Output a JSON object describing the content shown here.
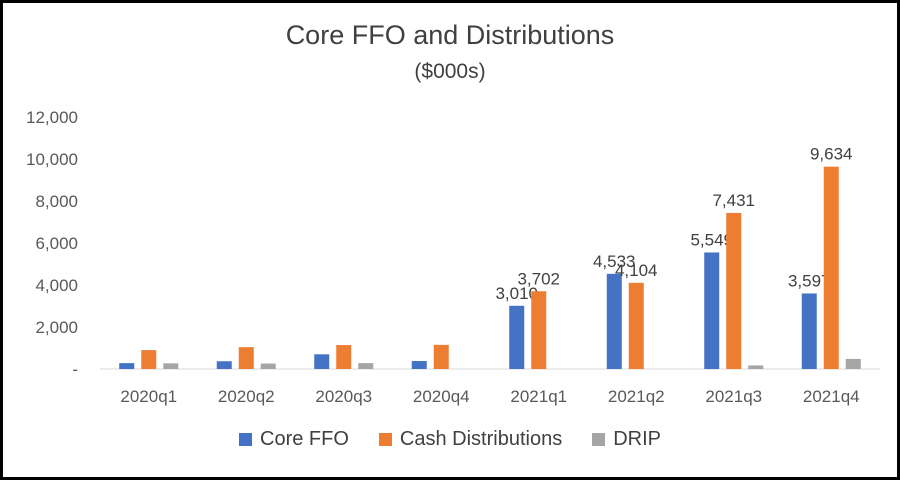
{
  "chart_data": {
    "type": "bar",
    "title": "Core FFO and Distributions",
    "subtitle": "($000s)",
    "categories": [
      "2020q1",
      "2020q2",
      "2020q3",
      "2020q4",
      "2021q1",
      "2021q2",
      "2021q3",
      "2021q4"
    ],
    "series": [
      {
        "name": "Core FFO",
        "color": "#4472C4",
        "values": [
          280,
          370,
          700,
          380,
          3010,
          4533,
          5549,
          3597
        ],
        "labels": [
          "",
          "",
          "",
          "",
          "3,010",
          "4,533",
          "5,549",
          "3,597"
        ]
      },
      {
        "name": "Cash Distributions",
        "color": "#ED7D31",
        "values": [
          900,
          1040,
          1140,
          1150,
          3702,
          4104,
          7431,
          9634
        ],
        "labels": [
          "",
          "",
          "",
          "",
          "3,702",
          "4,104",
          "7,431",
          "9,634"
        ]
      },
      {
        "name": "DRIP",
        "color": "#A5A5A5",
        "values": [
          270,
          260,
          280,
          0,
          0,
          0,
          170,
          480
        ],
        "labels": [
          "",
          "",
          "",
          "",
          "",
          "",
          "",
          ""
        ]
      }
    ],
    "ylim": [
      0,
      12000
    ],
    "yticks": [
      0,
      2000,
      4000,
      6000,
      8000,
      10000,
      12000
    ],
    "ytick_labels": [
      "-",
      "2,000",
      "4,000",
      "6,000",
      "8,000",
      "10,000",
      "12,000"
    ],
    "grid": false,
    "legend_position": "bottom"
  }
}
